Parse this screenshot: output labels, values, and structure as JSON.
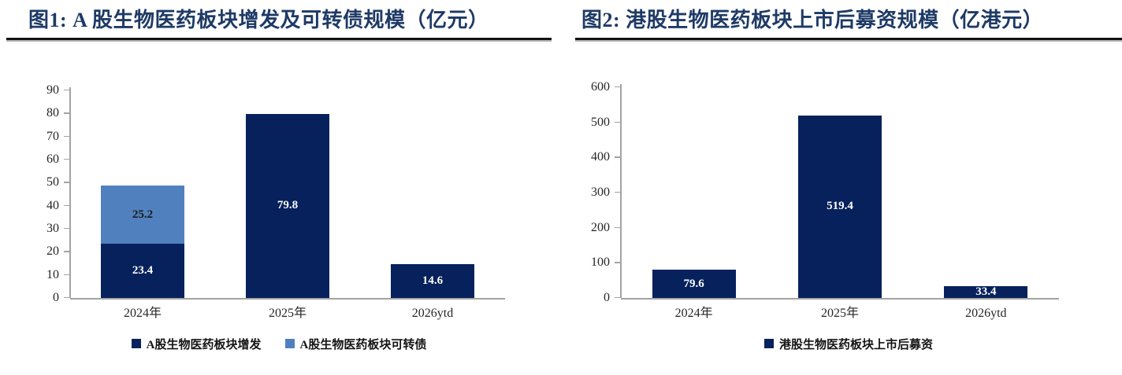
{
  "chart_data": [
    {
      "type": "bar",
      "stacked": true,
      "title": "图1:  A 股生物医药板块增发及可转债规模（亿元）",
      "categories": [
        "2024年",
        "2025年",
        "2026ytd"
      ],
      "series": [
        {
          "name": "A股生物医药板块增发",
          "color": "#06215c",
          "label_color": "#ffffff",
          "values": [
            23.4,
            79.8,
            14.6
          ]
        },
        {
          "name": "A股生物医药板块可转债",
          "color": "#5081be",
          "label_color": "#1c1c1c",
          "values": [
            25.2,
            0,
            0
          ]
        }
      ],
      "ylim": [
        0,
        90
      ],
      "ytick_step": 10,
      "grid": false,
      "legend_position": "bottom"
    },
    {
      "type": "bar",
      "stacked": false,
      "title": "图2:  港股生物医药板块上市后募资规模（亿港元）",
      "categories": [
        "2024年",
        "2025年",
        "2026ytd"
      ],
      "series": [
        {
          "name": "港股生物医药板块上市后募资",
          "color": "#06215c",
          "label_color": "#ffffff",
          "values": [
            79.6,
            519.4,
            33.4
          ]
        }
      ],
      "ylim": [
        0,
        600
      ],
      "ytick_step": 100,
      "grid": false,
      "legend_position": "bottom"
    }
  ],
  "style": {
    "title_color": "#1e3a66",
    "bar_navy": "#06215c",
    "bar_light_blue": "#5081be",
    "axis_color": "#a3a3a3",
    "text_color": "#262626",
    "rule_color": "#141414"
  }
}
